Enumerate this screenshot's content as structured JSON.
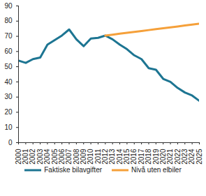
{
  "chart_data": {
    "type": "line",
    "x": [
      2000,
      2001,
      2002,
      2003,
      2004,
      2005,
      2006,
      2007,
      2008,
      2009,
      2010,
      2011,
      2012,
      2013,
      2014,
      2015,
      2016,
      2017,
      2018,
      2019,
      2020,
      2021,
      2022,
      2023,
      2024,
      2025
    ],
    "series": [
      {
        "name": "Faktiske bilavgifter",
        "color": "#1d7592",
        "values": [
          54,
          52.5,
          55,
          56,
          64.5,
          67.5,
          70.5,
          74.5,
          68,
          63.5,
          68.5,
          69,
          70.5,
          68,
          64.5,
          61.5,
          57.5,
          55,
          49,
          48,
          42,
          40,
          36,
          33,
          31,
          27.5
        ]
      },
      {
        "name": "Nivå uten elbiler",
        "color": "#f5a03a",
        "values": [
          null,
          null,
          null,
          null,
          null,
          null,
          null,
          null,
          null,
          null,
          null,
          null,
          70.5,
          71.1,
          71.7,
          72.3,
          72.9,
          73.5,
          74.1,
          74.7,
          75.3,
          75.9,
          76.5,
          77.1,
          77.7,
          78.3
        ]
      }
    ],
    "xlim": [
      2000,
      2025
    ],
    "xticks": [
      2000,
      2001,
      2002,
      2003,
      2004,
      2005,
      2006,
      2007,
      2008,
      2009,
      2010,
      2011,
      2012,
      2013,
      2014,
      2015,
      2016,
      2017,
      2018,
      2019,
      2020,
      2021,
      2022,
      2023,
      2024,
      2025
    ],
    "ylim": [
      0,
      90
    ],
    "yticks": [
      0,
      10,
      20,
      30,
      40,
      50,
      60,
      70,
      80,
      90
    ],
    "grid": false,
    "legend": "bottom"
  }
}
